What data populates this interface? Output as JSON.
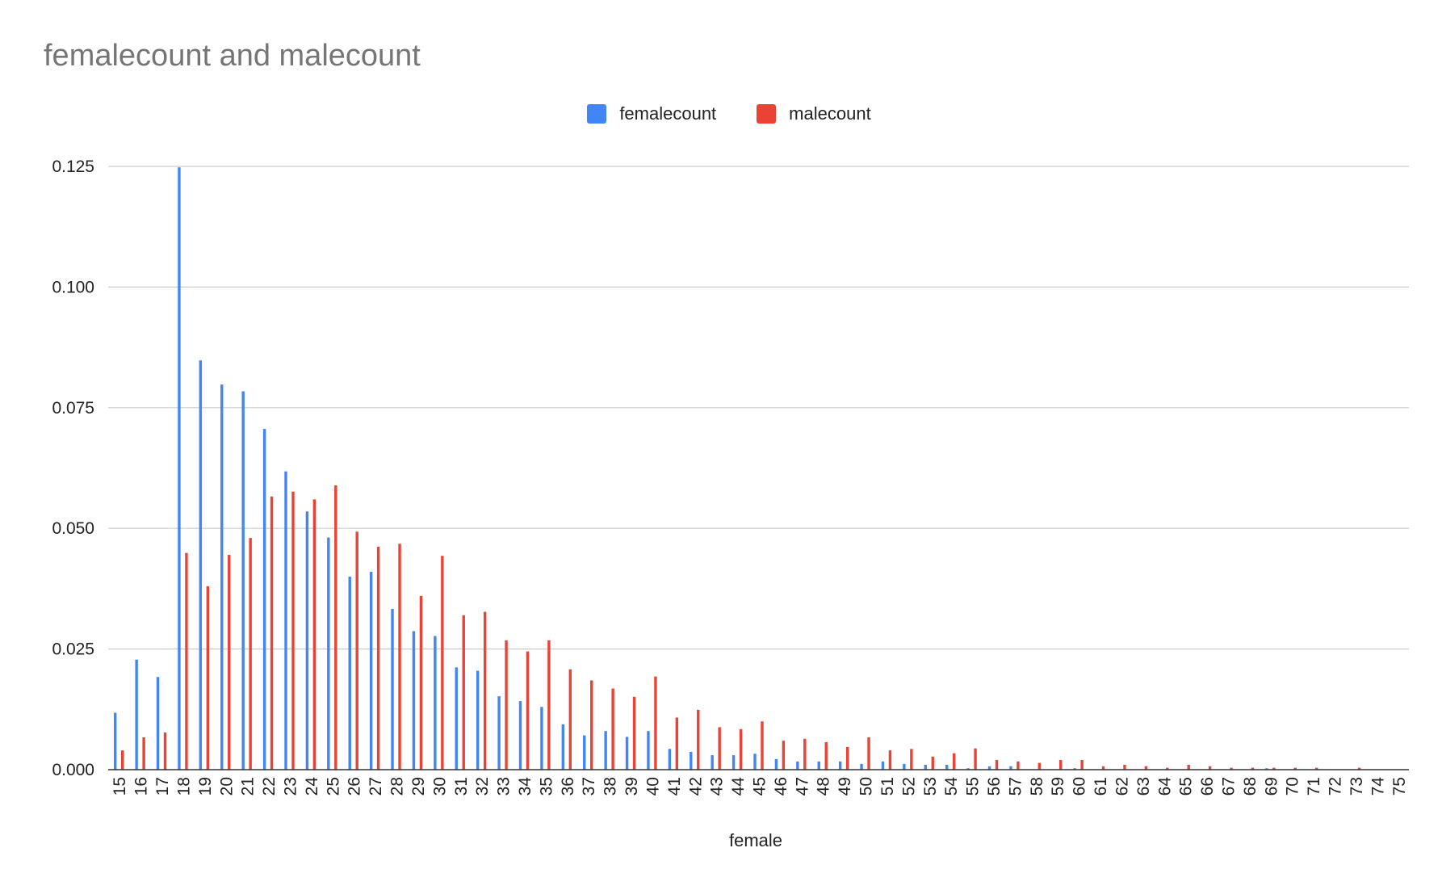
{
  "chart_data": {
    "type": "bar",
    "title": "femalecount and malecount",
    "xlabel": "female",
    "ylabel": "",
    "ylim": [
      0,
      0.125
    ],
    "yticks": [
      "0.000",
      "0.025",
      "0.050",
      "0.075",
      "0.100",
      "0.125"
    ],
    "grid": true,
    "legend_position": "top",
    "categories": [
      "15",
      "16",
      "17",
      "18",
      "19",
      "20",
      "21",
      "22",
      "23",
      "24",
      "25",
      "26",
      "27",
      "28",
      "29",
      "30",
      "31",
      "32",
      "33",
      "34",
      "35",
      "36",
      "37",
      "38",
      "39",
      "40",
      "41",
      "42",
      "43",
      "44",
      "45",
      "46",
      "47",
      "48",
      "49",
      "50",
      "51",
      "52",
      "53",
      "54",
      "55",
      "56",
      "57",
      "58",
      "59",
      "60",
      "61",
      "62",
      "63",
      "64",
      "65",
      "66",
      "67",
      "68",
      "69",
      "70",
      "71",
      "72",
      "73",
      "74",
      "75"
    ],
    "series": [
      {
        "name": "femalecount",
        "color": "#4285f4",
        "values": [
          0.0118,
          0.0228,
          0.0192,
          0.1248,
          0.0848,
          0.0798,
          0.0784,
          0.0706,
          0.0618,
          0.0535,
          0.0481,
          0.04,
          0.041,
          0.0333,
          0.0287,
          0.0277,
          0.0212,
          0.0205,
          0.0152,
          0.0142,
          0.013,
          0.0094,
          0.0071,
          0.008,
          0.0068,
          0.008,
          0.0043,
          0.0037,
          0.003,
          0.003,
          0.0033,
          0.0022,
          0.0017,
          0.0017,
          0.0017,
          0.0012,
          0.0017,
          0.0012,
          0.001,
          0.001,
          0.0003,
          0.0007,
          0.0007,
          0.0,
          0.0,
          0.0003,
          0.0,
          0.0,
          0.0,
          0.0,
          0.0,
          0.0,
          0.0,
          0.0,
          0.0003,
          0.0,
          0.0,
          0.0,
          0.0,
          0.0,
          0.0
        ]
      },
      {
        "name": "malecount",
        "color": "#ea4335",
        "values": [
          0.004,
          0.0067,
          0.0077,
          0.0449,
          0.038,
          0.0445,
          0.048,
          0.0566,
          0.0576,
          0.056,
          0.0589,
          0.0493,
          0.0462,
          0.0468,
          0.036,
          0.0443,
          0.032,
          0.0327,
          0.0268,
          0.0245,
          0.0268,
          0.0208,
          0.0185,
          0.0168,
          0.0151,
          0.0193,
          0.0108,
          0.0124,
          0.0088,
          0.0084,
          0.01,
          0.006,
          0.0064,
          0.0057,
          0.0047,
          0.0067,
          0.004,
          0.0043,
          0.0027,
          0.0034,
          0.0044,
          0.002,
          0.0017,
          0.0014,
          0.002,
          0.002,
          0.0007,
          0.001,
          0.0007,
          0.0004,
          0.001,
          0.0007,
          0.0004,
          0.0004,
          0.0004,
          0.0004,
          0.0004,
          0.0,
          0.0004,
          0.0,
          0.0
        ]
      }
    ]
  }
}
